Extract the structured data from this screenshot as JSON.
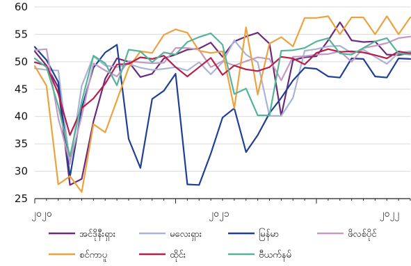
{
  "chart_data": {
    "type": "line",
    "ylim": [
      25,
      60
    ],
    "yticks": [
      25,
      30,
      35,
      40,
      45,
      50,
      55,
      60
    ],
    "x_tick_labels": [
      "၂၀၂၀",
      "၂၀၂၁",
      "၂၀၂၂"
    ],
    "legend_placement": "bottom",
    "grid": "horizontal",
    "series": [
      {
        "name": "အင်ဒိုနီးရှား",
        "color": "#6b2a7a",
        "values": [
          51.9,
          49.3,
          45.3,
          27.5,
          28.6,
          39.1,
          46.9,
          50.6,
          50.0,
          47.2,
          47.8,
          50.6,
          51.3,
          52.2,
          52.4,
          53.5,
          50.9,
          53.7,
          54.6,
          55.3,
          53.3,
          40.1,
          50.3,
          50.8,
          51.0,
          53.9,
          57.2,
          53.9,
          53.6,
          53.7,
          51.3,
          51.2,
          51.6
        ]
      },
      {
        "name": "မလေးရှား",
        "color": "#a9b3d8",
        "values": [
          48.8,
          48.5,
          48.4,
          31.3,
          45.6,
          51.0,
          49.3,
          49.0,
          49.6,
          48.9,
          48.5,
          48.7,
          49.0,
          48.4,
          49.9,
          47.7,
          49.9,
          53.9,
          51.3,
          49.9,
          40.1,
          40.1,
          43.4,
          52.0,
          52.3,
          52.8,
          52.9,
          51.6,
          52.2,
          50.9,
          49.6,
          51.6,
          51.9
        ]
      },
      {
        "name": "မြန်မာ",
        "color": "#1f3f94",
        "values": [
          52.7,
          50.3,
          46.3,
          29.0,
          41.5,
          48.9,
          51.7,
          53.1,
          35.9,
          30.6,
          43.2,
          44.7,
          47.8,
          27.6,
          27.5,
          33.2,
          39.8,
          41.5,
          33.5,
          36.6,
          40.6,
          43.4,
          46.6,
          48.9,
          48.7,
          47.3,
          47.1,
          50.6,
          50.5,
          47.3,
          47.1,
          50.6,
          50.5
        ]
      },
      {
        "name": "ဖိလစ်ပိုင်",
        "color": "#c49ac2",
        "values": [
          52.1,
          52.3,
          39.7,
          31.6,
          40.1,
          49.7,
          48.4,
          47.3,
          50.1,
          49.9,
          49.7,
          49.8,
          52.5,
          52.5,
          52.2,
          49.0,
          50.1,
          49.3,
          50.1,
          50.8,
          50.5,
          46.6,
          50.9,
          51.0,
          51.3,
          51.4,
          51.9,
          50.0,
          52.5,
          52.9,
          53.4,
          54.3,
          54.6
        ]
      },
      {
        "name": "စင်ကာပူ",
        "color": "#eea23f",
        "values": [
          49.2,
          45.6,
          27.6,
          29.1,
          26.2,
          38.6,
          37.1,
          43.0,
          48.9,
          51.9,
          51.6,
          54.9,
          55.9,
          55.3,
          52.0,
          51.6,
          51.9,
          41.5,
          56.3,
          44.0,
          53.3,
          54.5,
          52.8,
          58.0,
          58.0,
          58.3,
          55.0,
          58.1,
          58.1,
          55.0,
          58.3,
          55.0,
          58.1
        ]
      },
      {
        "name": "ထိုင်း",
        "color": "#b51f4a",
        "values": [
          49.9,
          49.3,
          44.2,
          36.6,
          41.5,
          43.3,
          46.0,
          49.5,
          49.6,
          50.8,
          50.5,
          51.1,
          49.0,
          47.3,
          49.0,
          50.7,
          47.6,
          49.3,
          48.6,
          48.3,
          49.0,
          50.9,
          50.6,
          49.5,
          51.6,
          52.3,
          51.8,
          51.9,
          51.7,
          51.2,
          50.6,
          51.9,
          51.5
        ]
      },
      {
        "name": "ဗီယက်နမ်",
        "color": "#54b398",
        "values": [
          50.6,
          49.0,
          41.9,
          32.7,
          42.7,
          51.1,
          49.7,
          45.7,
          52.2,
          51.9,
          49.9,
          51.7,
          51.3,
          53.6,
          54.5,
          55.2,
          53.1,
          44.1,
          45.1,
          40.2,
          40.2,
          52.0,
          52.1,
          52.5,
          53.7,
          54.3,
          51.5,
          51.3,
          52.5,
          53.7,
          54.3,
          51.5,
          51.3
        ]
      }
    ]
  }
}
